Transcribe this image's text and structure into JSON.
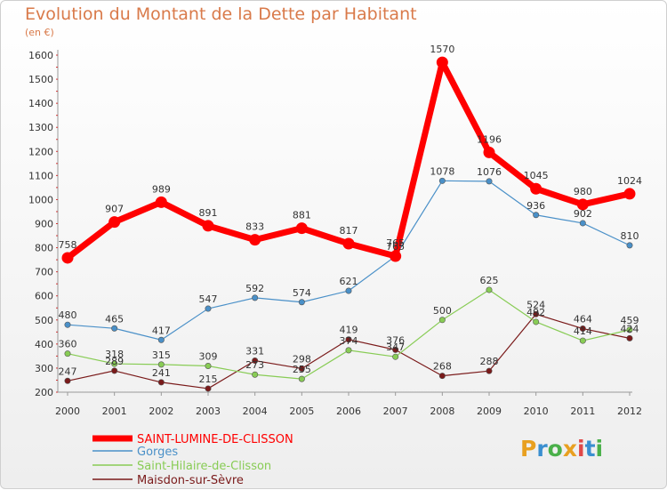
{
  "header": {
    "title": "Evolution du Montant de la Dette par Habitant",
    "subtitle": "(en €)"
  },
  "logo": {
    "text": "Proxiti",
    "colors": [
      "#e8a020",
      "#3a8fd0",
      "#4ab04a",
      "#e8a020",
      "#e04848",
      "#3a8fd0",
      "#4ab04a"
    ]
  },
  "chart_data": {
    "type": "line",
    "x": [
      2000,
      2001,
      2002,
      2003,
      2004,
      2005,
      2006,
      2007,
      2008,
      2009,
      2010,
      2011,
      2012
    ],
    "ylim": [
      200,
      1600
    ],
    "yticks": [
      200,
      300,
      400,
      500,
      600,
      700,
      800,
      900,
      1000,
      1100,
      1200,
      1300,
      1400,
      1500,
      1600
    ],
    "grid": false,
    "legend": "bottom-left",
    "series": [
      {
        "name": "SAINT-LUMINE-DE-CLISSON",
        "color": "#ff0000",
        "values": [
          758,
          907,
          989,
          891,
          833,
          881,
          817,
          765,
          1570,
          1196,
          1045,
          980,
          1024
        ]
      },
      {
        "name": "Gorges",
        "color": "#4a90c8",
        "values": [
          480,
          465,
          417,
          547,
          592,
          574,
          621,
          765,
          1078,
          1076,
          936,
          902,
          810
        ]
      },
      {
        "name": "Saint-Hilaire-de-Clisson",
        "color": "#88cc55",
        "values": [
          360,
          318,
          315,
          309,
          273,
          255,
          374,
          347,
          500,
          625,
          492,
          414,
          459
        ]
      },
      {
        "name": "Maisdon-sur-Sèvre",
        "color": "#7a1a1a",
        "values": [
          247,
          289,
          241,
          215,
          331,
          298,
          419,
          376,
          268,
          288,
          524,
          464,
          424
        ]
      }
    ]
  }
}
